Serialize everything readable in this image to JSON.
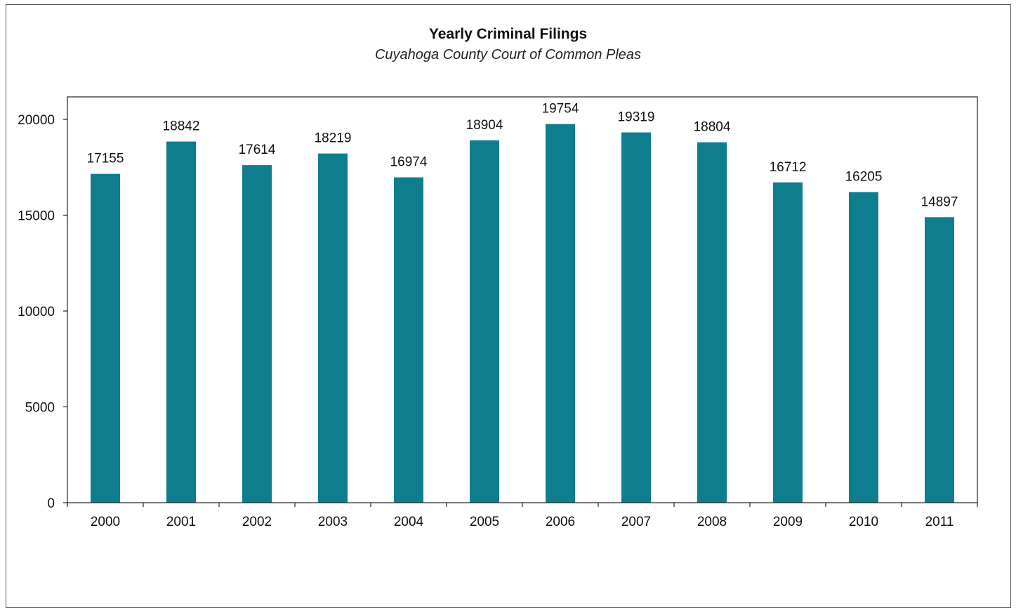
{
  "chart_data": {
    "type": "bar",
    "title": "Yearly Criminal Filings",
    "subtitle": "Cuyahoga County Court of Common Pleas",
    "xlabel": "",
    "ylabel": "",
    "categories": [
      "2000",
      "2001",
      "2002",
      "2003",
      "2004",
      "2005",
      "2006",
      "2007",
      "2008",
      "2009",
      "2010",
      "2011"
    ],
    "values": [
      17155,
      18842,
      17614,
      18219,
      16974,
      18904,
      19754,
      19319,
      18804,
      16712,
      16205,
      14897
    ],
    "ylim": [
      0,
      20000
    ],
    "yticks": [
      0,
      5000,
      10000,
      15000,
      20000
    ],
    "grid": false,
    "legend": "none",
    "bar_color": "#0e7d8e"
  }
}
